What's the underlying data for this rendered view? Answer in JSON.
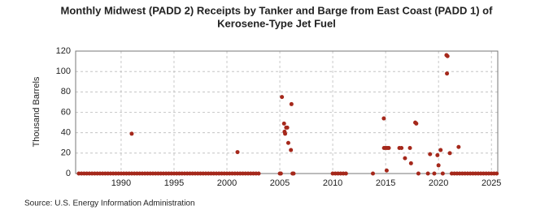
{
  "chart_data": {
    "type": "scatter",
    "title": "Monthly Midwest (PADD 2) Receipts by Tanker and Barge from East Coast (PADD 1) of",
    "subtitle": "Kerosene-Type Jet Fuel",
    "ylabel": "Thousand Barrels",
    "source": "Source: U.S. Energy Information Administration",
    "xlim": [
      1985.7,
      2025.6
    ],
    "ylim": [
      0,
      120
    ],
    "xticks": [
      1990,
      1995,
      2000,
      2005,
      2010,
      2015,
      2020,
      2025
    ],
    "yticks": [
      0,
      20,
      40,
      60,
      80,
      100,
      120
    ],
    "grid": true,
    "color": "#a5281b",
    "x": [
      1986.0,
      1986.25,
      1986.5,
      1986.75,
      1987.0,
      1987.25,
      1987.5,
      1987.75,
      1988.0,
      1988.25,
      1988.5,
      1988.75,
      1989.0,
      1989.25,
      1989.5,
      1989.75,
      1990.0,
      1990.25,
      1990.5,
      1990.75,
      1991.0,
      1991.25,
      1991.5,
      1991.75,
      1992.0,
      1992.25,
      1992.5,
      1992.75,
      1993.0,
      1993.25,
      1993.5,
      1993.75,
      1994.0,
      1994.25,
      1994.5,
      1994.75,
      1995.0,
      1995.25,
      1995.5,
      1995.75,
      1996.0,
      1996.25,
      1996.5,
      1996.75,
      1997.0,
      1997.25,
      1997.5,
      1997.75,
      1998.0,
      1998.25,
      1998.5,
      1998.75,
      1999.0,
      1999.25,
      1999.5,
      1999.75,
      2000.0,
      2000.25,
      2000.5,
      2000.75,
      2001.0,
      2001.25,
      2001.5,
      2001.75,
      2002.0,
      2002.25,
      2002.5,
      2002.75,
      2003.0,
      1991.0,
      2001.0,
      2005.0,
      2005.1,
      2005.2,
      2005.4,
      2005.45,
      2005.5,
      2005.6,
      2005.7,
      2005.8,
      2006.05,
      2006.1,
      2006.2,
      2006.3,
      2010.0,
      2010.25,
      2010.5,
      2010.75,
      2011.0,
      2011.25,
      2013.8,
      2014.83,
      2014.85,
      2015.0,
      2015.1,
      2015.15,
      2015.3,
      2016.3,
      2016.5,
      2016.83,
      2017.3,
      2017.4,
      2017.8,
      2017.9,
      2018.1,
      2019.0,
      2019.2,
      2019.6,
      2019.9,
      2020.0,
      2020.2,
      2020.4,
      2020.75,
      2020.8,
      2020.85,
      2021.07,
      2021.25,
      2021.5,
      2021.75,
      2021.9,
      2022.0,
      2022.25,
      2022.5,
      2022.75,
      2023.0,
      2023.25,
      2023.5,
      2023.75,
      2024.0,
      2024.25,
      2024.5,
      2024.75,
      2025.0,
      2025.25,
      2025.5
    ],
    "values": [
      0,
      0,
      0,
      0,
      0,
      0,
      0,
      0,
      0,
      0,
      0,
      0,
      0,
      0,
      0,
      0,
      0,
      0,
      0,
      0,
      0,
      0,
      0,
      0,
      0,
      0,
      0,
      0,
      0,
      0,
      0,
      0,
      0,
      0,
      0,
      0,
      0,
      0,
      0,
      0,
      0,
      0,
      0,
      0,
      0,
      0,
      0,
      0,
      0,
      0,
      0,
      0,
      0,
      0,
      0,
      0,
      0,
      0,
      0,
      0,
      0,
      0,
      0,
      0,
      0,
      0,
      0,
      0,
      0,
      39,
      21,
      0,
      0,
      75,
      49,
      41,
      39,
      45,
      45,
      30,
      23,
      68,
      0,
      0,
      0,
      0,
      0,
      0,
      0,
      0,
      0,
      54,
      25,
      25,
      3,
      25,
      25,
      25,
      25,
      15,
      25,
      10,
      50,
      49,
      0,
      0,
      19,
      0,
      18,
      8,
      23,
      0,
      116,
      98,
      115,
      20,
      0,
      0,
      0,
      26,
      0,
      0,
      0,
      0,
      0,
      0,
      0,
      0,
      0,
      0,
      0,
      0,
      0,
      0,
      0
    ]
  }
}
